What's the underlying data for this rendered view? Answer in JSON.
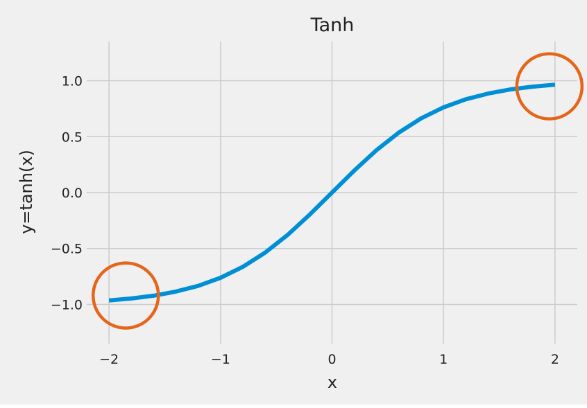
{
  "chart_data": {
    "type": "line",
    "title": "Tanh",
    "xlabel": "x",
    "ylabel": "y=tanh(x)",
    "xlim": [
      -2.2,
      2.2
    ],
    "ylim": [
      -1.35,
      1.35
    ],
    "grid": true,
    "legend": "none",
    "xticks": [
      -2,
      -1,
      0,
      1,
      2
    ],
    "xtick_labels": [
      "−2",
      "−1",
      "0",
      "1",
      "2"
    ],
    "yticks": [
      -1.0,
      -0.5,
      0.0,
      0.5,
      1.0
    ],
    "ytick_labels": [
      "−1.0",
      "−0.5",
      "0.0",
      "0.5",
      "1.0"
    ],
    "series": [
      {
        "color": "#008fd5",
        "x": [
          -2.0,
          -1.8,
          -1.6,
          -1.4,
          -1.2,
          -1.0,
          -0.8,
          -0.6,
          -0.4,
          -0.2,
          0.0,
          0.2,
          0.4,
          0.6,
          0.8,
          1.0,
          1.2,
          1.4,
          1.6,
          1.8,
          2.0
        ],
        "y": [
          -0.964,
          -0.947,
          -0.922,
          -0.885,
          -0.834,
          -0.762,
          -0.664,
          -0.537,
          -0.38,
          -0.197,
          0.0,
          0.197,
          0.38,
          0.537,
          0.664,
          0.762,
          0.834,
          0.885,
          0.922,
          0.947,
          0.964
        ]
      }
    ],
    "annotations": [
      {
        "shape": "circle",
        "x": -1.85,
        "y": -0.92,
        "color": "#e5661b"
      },
      {
        "shape": "circle",
        "x": 1.95,
        "y": 0.95,
        "color": "#e5661b"
      }
    ],
    "colors": {
      "plot_background": "#f0f0f0",
      "grid": "#cbcbcb",
      "line": "#008fd5",
      "annotation": "#e5661b"
    }
  }
}
